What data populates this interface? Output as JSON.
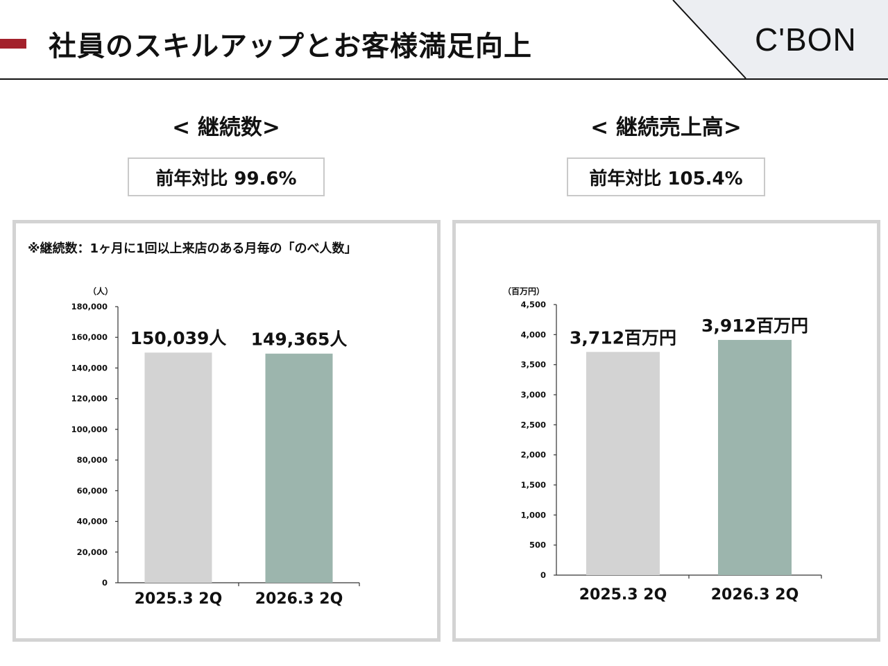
{
  "header": {
    "title": "社員のスキルアップとお客様満足向上",
    "brand": "C'BON",
    "accent_color": "#a3212b"
  },
  "left": {
    "section_title": "< 継続数>",
    "yoy": "前年対比 99.6%",
    "note": "※継続数：1ヶ月に1回以上来店のある月毎の「のべ人数」"
  },
  "right": {
    "section_title": "< 継続売上高>",
    "yoy": "前年対比 105.4%"
  },
  "chart_data": [
    {
      "type": "bar",
      "categories": [
        "2025.3 2Q",
        "2026.3 2Q"
      ],
      "values": [
        150039,
        149365
      ],
      "data_labels": [
        "150,039人",
        "149,365人"
      ],
      "unit_label": "（人）",
      "ylim": [
        0,
        180000
      ],
      "ticks": [
        "0",
        "20,000",
        "40,000",
        "60,000",
        "80,000",
        "100,000",
        "120,000",
        "140,000",
        "160,000",
        "180,000"
      ],
      "tick_values": [
        0,
        20000,
        40000,
        60000,
        80000,
        100000,
        120000,
        140000,
        160000,
        180000
      ],
      "colors": [
        "#d3d3d3",
        "#9cb5ad"
      ],
      "grid": false
    },
    {
      "type": "bar",
      "categories": [
        "2025.3 2Q",
        "2026.3 2Q"
      ],
      "values": [
        3712,
        3912
      ],
      "data_labels": [
        "3,712百万円",
        "3,912百万円"
      ],
      "unit_label": "（百万円）",
      "ylim": [
        0,
        4500
      ],
      "ticks": [
        "0",
        "500",
        "1,000",
        "1,500",
        "2,000",
        "2,500",
        "3,000",
        "3,500",
        "4,000",
        "4,500"
      ],
      "tick_values": [
        0,
        500,
        1000,
        1500,
        2000,
        2500,
        3000,
        3500,
        4000,
        4500
      ],
      "colors": [
        "#d3d3d3",
        "#9cb5ad"
      ],
      "grid": false
    }
  ]
}
